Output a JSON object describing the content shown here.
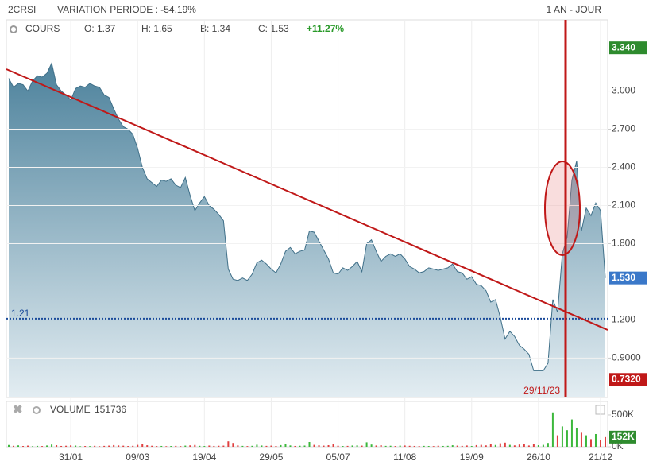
{
  "header": {
    "symbol": "2CRSI",
    "variation": "VARIATION PERIODE : -54.19%",
    "period": "1 AN - JOUR"
  },
  "chart_data": [
    {
      "type": "area",
      "label": "COURS",
      "stats": [
        "O: 1.37",
        "H: 1.65",
        "B: 1.34",
        "C: 1.53"
      ],
      "change": "+11.27%",
      "color": "#3f6f88",
      "values": [
        3.1,
        3.03,
        3.06,
        3.05,
        3.0,
        3.08,
        3.12,
        3.11,
        3.14,
        3.22,
        3.05,
        3.0,
        2.97,
        2.93,
        3.02,
        3.04,
        3.03,
        3.06,
        3.04,
        3.03,
        2.97,
        2.95,
        2.86,
        2.78,
        2.72,
        2.7,
        2.66,
        2.55,
        2.4,
        2.31,
        2.28,
        2.25,
        2.3,
        2.29,
        2.31,
        2.26,
        2.24,
        2.32,
        2.18,
        2.06,
        2.12,
        2.17,
        2.1,
        2.07,
        2.03,
        1.98,
        1.6,
        1.52,
        1.51,
        1.53,
        1.51,
        1.56,
        1.65,
        1.67,
        1.64,
        1.6,
        1.57,
        1.64,
        1.74,
        1.77,
        1.72,
        1.74,
        1.75,
        1.9,
        1.89,
        1.82,
        1.75,
        1.68,
        1.57,
        1.56,
        1.61,
        1.59,
        1.62,
        1.66,
        1.58,
        1.8,
        1.83,
        1.74,
        1.66,
        1.7,
        1.72,
        1.7,
        1.72,
        1.68,
        1.62,
        1.6,
        1.57,
        1.58,
        1.61,
        1.6,
        1.59,
        1.6,
        1.61,
        1.64,
        1.58,
        1.57,
        1.52,
        1.54,
        1.48,
        1.47,
        1.43,
        1.34,
        1.36,
        1.22,
        1.05,
        1.11,
        1.07,
        1.0,
        0.97,
        0.93,
        0.8,
        0.8,
        0.8,
        0.86,
        1.36,
        1.26,
        1.72,
        1.85,
        2.3,
        2.45,
        1.9,
        2.08,
        2.02,
        2.12,
        2.06,
        1.53
      ],
      "ylim": [
        0.59,
        3.56
      ],
      "yticks": [
        {
          "value": 3,
          "label": "3.000"
        },
        {
          "value": 2.7,
          "label": "2.700"
        },
        {
          "value": 2.4,
          "label": "2.400"
        },
        {
          "value": 2.1,
          "label": "2.100"
        },
        {
          "value": 1.8,
          "label": "1.800"
        },
        {
          "value": 1.2,
          "label": "1.200"
        },
        {
          "value": 0.9,
          "label": "0.9000"
        }
      ],
      "level": 1.21,
      "badges": [
        {
          "value": 3.34,
          "label": "3.340",
          "color": "#2e8b2e"
        },
        {
          "value": 1.53,
          "label": "1.530",
          "color": "#3a78c9"
        },
        {
          "value": 0.732,
          "label": "0.7320",
          "color": "#c01818"
        }
      ],
      "annotation": "29/11/23"
    },
    {
      "type": "bar",
      "label": "VOLUME",
      "up_color": "#3cb83c",
      "down_color": "#e04040",
      "categories": [
        null,
        null,
        null,
        null,
        null,
        null,
        null,
        null,
        null,
        null,
        null,
        null,
        null,
        "31/01",
        null,
        null,
        null,
        null,
        null,
        null,
        null,
        null,
        null,
        null,
        null,
        null,
        null,
        "09/03",
        null,
        null,
        null,
        null,
        null,
        null,
        null,
        null,
        null,
        null,
        null,
        null,
        null,
        "19/04",
        null,
        null,
        null,
        null,
        null,
        null,
        null,
        null,
        null,
        null,
        null,
        null,
        null,
        "29/05",
        null,
        null,
        null,
        null,
        null,
        null,
        null,
        null,
        null,
        null,
        null,
        null,
        null,
        "05/07",
        null,
        null,
        null,
        null,
        null,
        null,
        null,
        null,
        null,
        null,
        null,
        null,
        null,
        "11/08",
        null,
        null,
        null,
        null,
        null,
        null,
        null,
        null,
        null,
        null,
        null,
        null,
        null,
        "19/09",
        null,
        null,
        null,
        null,
        null,
        null,
        null,
        null,
        null,
        null,
        null,
        null,
        null,
        "26/10",
        null,
        null,
        null,
        null,
        null,
        null,
        null,
        null,
        null,
        null,
        null,
        null,
        "21/12",
        null
      ],
      "values": [
        28000,
        15000,
        22000,
        12000,
        18000,
        9000,
        14000,
        11000,
        20000,
        35000,
        25000,
        13000,
        16000,
        22000,
        19000,
        8000,
        12000,
        10000,
        15000,
        9000,
        14000,
        18000,
        26000,
        21000,
        17000,
        12000,
        15000,
        30000,
        42000,
        24000,
        16000,
        11000,
        13000,
        9000,
        12000,
        14000,
        10000,
        18000,
        22000,
        28000,
        15000,
        12000,
        19000,
        13000,
        16000,
        18000,
        85000,
        60000,
        22000,
        14000,
        11000,
        15000,
        32000,
        20000,
        14000,
        18000,
        12000,
        26000,
        38000,
        21000,
        13000,
        16000,
        19000,
        75000,
        30000,
        24000,
        18000,
        25000,
        48000,
        16000,
        12000,
        14000,
        20000,
        22000,
        18000,
        70000,
        35000,
        20000,
        25000,
        14000,
        16000,
        12000,
        18000,
        20000,
        15000,
        13000,
        11000,
        14000,
        12000,
        10000,
        16000,
        13000,
        15000,
        24000,
        18000,
        14000,
        20000,
        12000,
        26000,
        30000,
        22000,
        45000,
        28000,
        55000,
        65000,
        30000,
        22000,
        35000,
        40000,
        20000,
        45000,
        25000,
        30000,
        60000,
        540000,
        180000,
        320000,
        260000,
        430000,
        300000,
        220000,
        180000,
        120000,
        200000,
        100000,
        151736
      ],
      "ylim": [
        0,
        712000
      ],
      "yticks": [
        {
          "value": 500000,
          "label": "500K"
        },
        {
          "value": 0,
          "label": "0K"
        }
      ],
      "badge": {
        "value": 151736,
        "label": "152K",
        "color": "#2e8b2e"
      }
    }
  ]
}
